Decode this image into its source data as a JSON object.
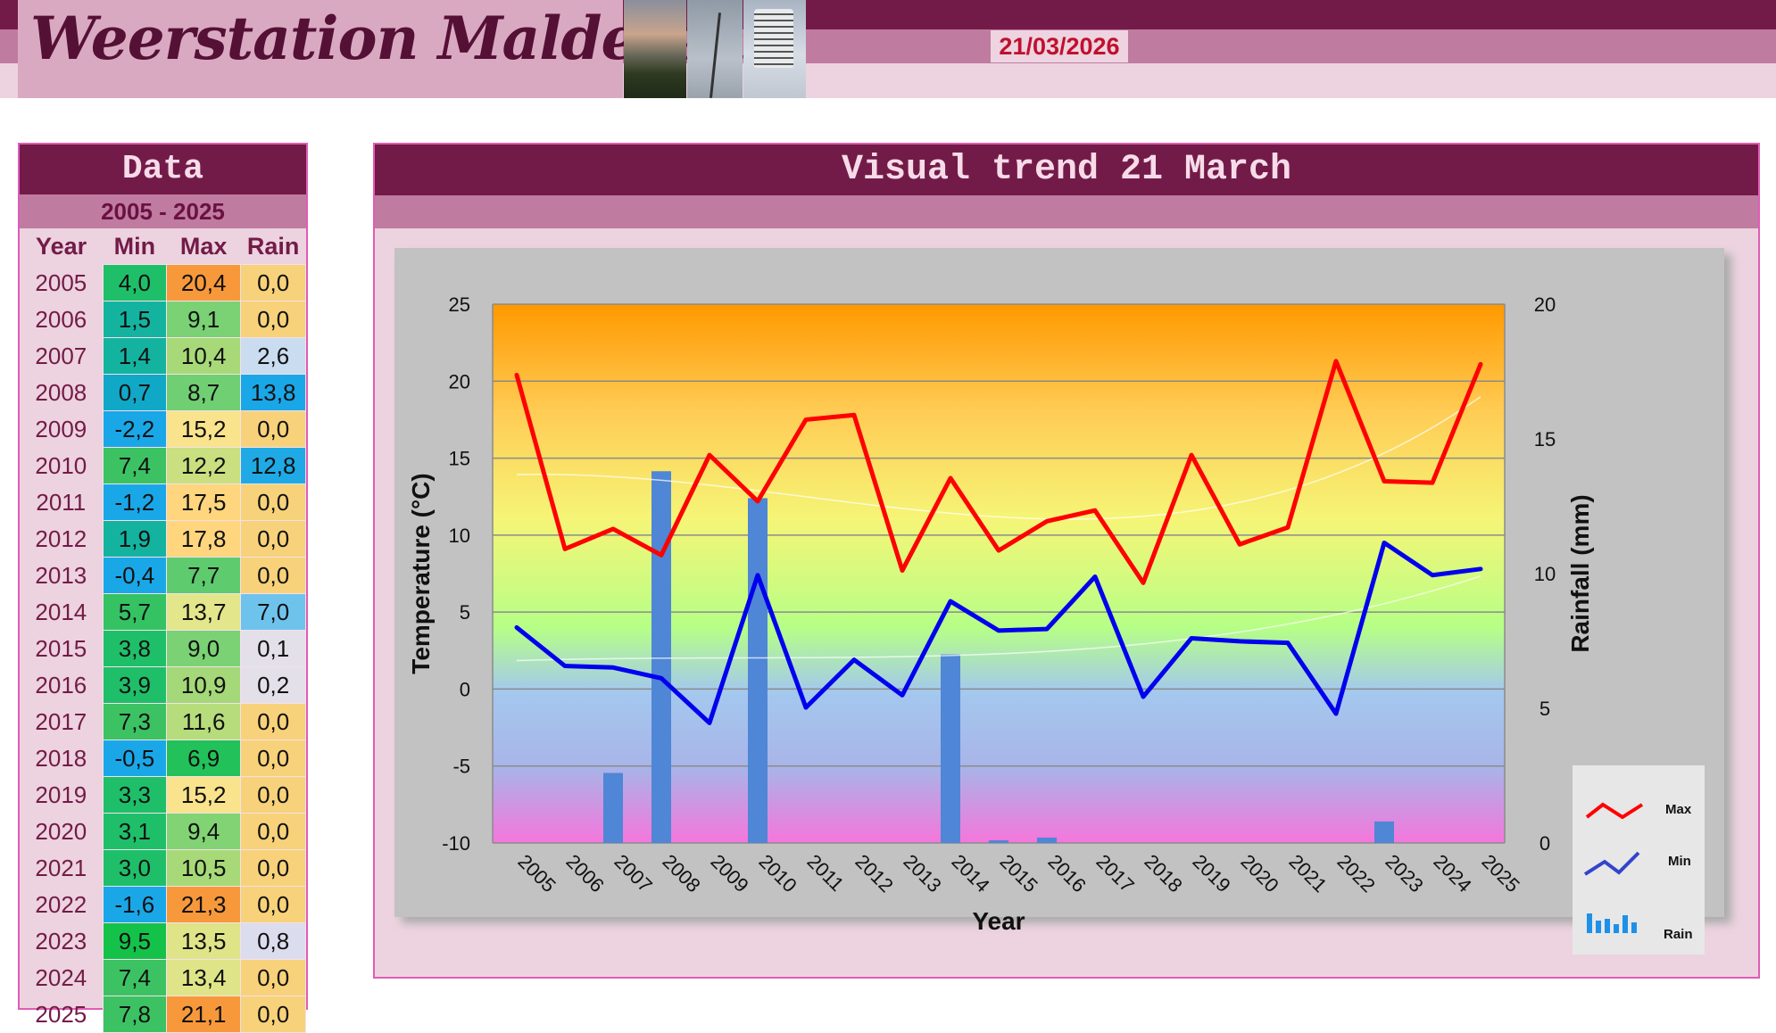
{
  "header": {
    "title": "Weerstation Malderen",
    "date": "21/03/2026"
  },
  "table": {
    "title": "Data",
    "range": "2005 - 2025",
    "headers": [
      "Year",
      "Min",
      "Max",
      "Rain"
    ],
    "rows": [
      {
        "year": "2005",
        "min": "4,0",
        "max": "20,4",
        "rain": "0,0"
      },
      {
        "year": "2006",
        "min": "1,5",
        "max": "9,1",
        "rain": "0,0"
      },
      {
        "year": "2007",
        "min": "1,4",
        "max": "10,4",
        "rain": "2,6"
      },
      {
        "year": "2008",
        "min": "0,7",
        "max": "8,7",
        "rain": "13,8"
      },
      {
        "year": "2009",
        "min": "-2,2",
        "max": "15,2",
        "rain": "0,0"
      },
      {
        "year": "2010",
        "min": "7,4",
        "max": "12,2",
        "rain": "12,8"
      },
      {
        "year": "2011",
        "min": "-1,2",
        "max": "17,5",
        "rain": "0,0"
      },
      {
        "year": "2012",
        "min": "1,9",
        "max": "17,8",
        "rain": "0,0"
      },
      {
        "year": "2013",
        "min": "-0,4",
        "max": "7,7",
        "rain": "0,0"
      },
      {
        "year": "2014",
        "min": "5,7",
        "max": "13,7",
        "rain": "7,0"
      },
      {
        "year": "2015",
        "min": "3,8",
        "max": "9,0",
        "rain": "0,1"
      },
      {
        "year": "2016",
        "min": "3,9",
        "max": "10,9",
        "rain": "0,2"
      },
      {
        "year": "2017",
        "min": "7,3",
        "max": "11,6",
        "rain": "0,0"
      },
      {
        "year": "2018",
        "min": "-0,5",
        "max": "6,9",
        "rain": "0,0"
      },
      {
        "year": "2019",
        "min": "3,3",
        "max": "15,2",
        "rain": "0,0"
      },
      {
        "year": "2020",
        "min": "3,1",
        "max": "9,4",
        "rain": "0,0"
      },
      {
        "year": "2021",
        "min": "3,0",
        "max": "10,5",
        "rain": "0,0"
      },
      {
        "year": "2022",
        "min": "-1,6",
        "max": "21,3",
        "rain": "0,0"
      },
      {
        "year": "2023",
        "min": "9,5",
        "max": "13,5",
        "rain": "0,8"
      },
      {
        "year": "2024",
        "min": "7,4",
        "max": "13,4",
        "rain": "0,0"
      },
      {
        "year": "2025",
        "min": "7,8",
        "max": "21,1",
        "rain": "0,0"
      }
    ],
    "colors": {
      "min": [
        "#1fbf6a",
        "#14b3a0",
        "#14b3a0",
        "#11a8c8",
        "#1aa7e8",
        "#3cc263",
        "#1aa7e8",
        "#14b3a0",
        "#1aa7e8",
        "#34c263",
        "#1fbf6a",
        "#1fbf6a",
        "#3cc263",
        "#1aa7e8",
        "#1fbf6a",
        "#1fbf6a",
        "#1fbf6a",
        "#1aa7e8",
        "#14c24a",
        "#3cc263",
        "#3cc263"
      ],
      "max": [
        "#f7993a",
        "#7ad274",
        "#a8d978",
        "#70cf72",
        "#f9e38c",
        "#c9df80",
        "#ffd57e",
        "#ffd57e",
        "#5ecb6e",
        "#e4e68c",
        "#7ad274",
        "#a4d878",
        "#b6dc7c",
        "#22c15a",
        "#f9e38c",
        "#82d374",
        "#a8d978",
        "#f7993a",
        "#dfe488",
        "#dfe488",
        "#f7993a"
      ],
      "rain": [
        "#f8d27a",
        "#f8d27a",
        "#c9dcf0",
        "#1aa7e8",
        "#f8d27a",
        "#1faae6",
        "#f8d27a",
        "#f8d27a",
        "#f8d27a",
        "#6ec3ec",
        "#e4e0ea",
        "#e4e0ea",
        "#f8d27a",
        "#f8d27a",
        "#f8d27a",
        "#f8d27a",
        "#f8d27a",
        "#f8d27a",
        "#dcdcef",
        "#f8d27a",
        "#f8d27a"
      ]
    }
  },
  "chart_panel": {
    "title": "Visual trend 21 March"
  },
  "chart_data": {
    "type": "line",
    "title": "Visual trend 21 March",
    "xlabel": "Year",
    "ylabel": "Temperature (°C)",
    "y2label": "Rainfall (mm)",
    "x": [
      "2005",
      "2006",
      "2007",
      "2008",
      "2009",
      "2010",
      "2011",
      "2012",
      "2013",
      "2014",
      "2015",
      "2016",
      "2017",
      "2018",
      "2019",
      "2020",
      "2021",
      "2022",
      "2023",
      "2024",
      "2025"
    ],
    "ylim": [
      -10,
      25
    ],
    "y_ticks": [
      -10,
      -5,
      0,
      5,
      10,
      15,
      20,
      25
    ],
    "y2lim": [
      0,
      20
    ],
    "y2_ticks": [
      0,
      5,
      10,
      15,
      20
    ],
    "series": [
      {
        "name": "Max",
        "type": "line",
        "axis": "left",
        "color": "#ff0000",
        "values": [
          20.4,
          9.1,
          10.4,
          8.7,
          15.2,
          12.2,
          17.5,
          17.8,
          7.7,
          13.7,
          9.0,
          10.9,
          11.6,
          6.9,
          15.2,
          9.4,
          10.5,
          21.3,
          13.5,
          13.4,
          21.1
        ]
      },
      {
        "name": "Min",
        "type": "line",
        "axis": "left",
        "color": "#0000ee",
        "values": [
          4.0,
          1.5,
          1.4,
          0.7,
          -2.2,
          7.4,
          -1.2,
          1.9,
          -0.4,
          5.7,
          3.8,
          3.9,
          7.3,
          -0.5,
          3.3,
          3.1,
          3.0,
          -1.6,
          9.5,
          7.4,
          7.8
        ]
      },
      {
        "name": "Rain",
        "type": "bar",
        "axis": "right",
        "color": "#4f86d6",
        "values": [
          0.0,
          0.0,
          2.6,
          13.8,
          0.0,
          12.8,
          0.0,
          0.0,
          0.0,
          7.0,
          0.1,
          0.2,
          0.0,
          0.0,
          0.0,
          0.0,
          0.0,
          0.0,
          0.8,
          0.0,
          0.0
        ]
      }
    ],
    "trendlines": true,
    "grid": true,
    "legend_position": "right",
    "background": "rainbow gradient"
  }
}
